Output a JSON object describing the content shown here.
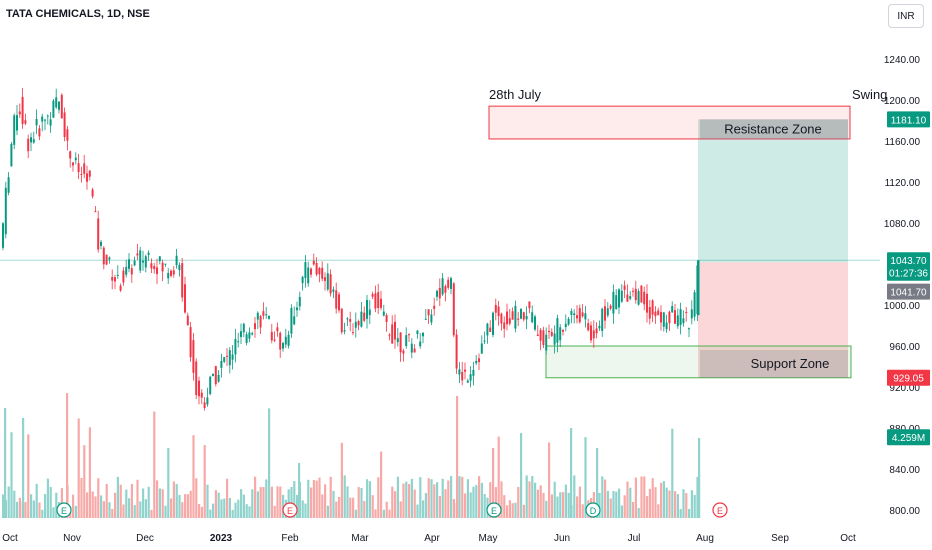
{
  "header": {
    "ticker": "TATA CHEMICALS, 1D, NSE",
    "currency_button": "INR"
  },
  "chart_data": {
    "type": "candlestick",
    "price_axis": {
      "ticks": [
        "1240.00",
        "1200.00",
        "1160.00",
        "1120.00",
        "1080.00",
        "1000.00",
        "960.00",
        "920.00",
        "880.00",
        "840.00",
        "800.00"
      ],
      "ylim": [
        795,
        1275
      ]
    },
    "time_axis": [
      "Oct",
      "Nov",
      "Dec",
      "2023",
      "Feb",
      "Mar",
      "Apr",
      "May",
      "Jun",
      "Jul",
      "Aug",
      "Sep",
      "Oct"
    ],
    "annotations": {
      "date_label": "28th July",
      "swing_label": "Swing",
      "resistance_label": "Resistance Zone",
      "support_label": "Support Zone"
    },
    "zones": {
      "resistance": {
        "low": 1162,
        "high": 1194
      },
      "support": {
        "low": 929,
        "high": 960
      },
      "target": {
        "low": 1041.7,
        "high": 1181.1
      },
      "stop": {
        "low": 929.05,
        "high": 1041.7
      }
    },
    "price_tags": [
      {
        "label": "1181.10",
        "value": 1181.1,
        "color": "#089981"
      },
      {
        "label": "1043.70",
        "value": 1043.7,
        "color": "#089981"
      },
      {
        "label": "01:27:36",
        "value": 1031.5,
        "color": "#089981"
      },
      {
        "label": "1041.70",
        "value": 1013,
        "color": "#787b86"
      },
      {
        "label": "929.05",
        "value": 929.05,
        "color": "#f23645"
      },
      {
        "label": "4.259M",
        "value": 871,
        "color": "#089981"
      }
    ],
    "event_markers": [
      {
        "label": "E",
        "month": "Nov",
        "color": "#089981"
      },
      {
        "label": "E",
        "month": "Feb",
        "color": "#f23645"
      },
      {
        "label": "E",
        "month": "May",
        "color": "#089981"
      },
      {
        "label": "D",
        "month": "Jun",
        "color": "#089981"
      },
      {
        "label": "E",
        "month": "Aug",
        "color": "#f23645"
      }
    ],
    "colors": {
      "up": "#089981",
      "down": "#f23645",
      "up_volume": "#8fd3cc",
      "down_volume": "#f7a9a7"
    }
  }
}
